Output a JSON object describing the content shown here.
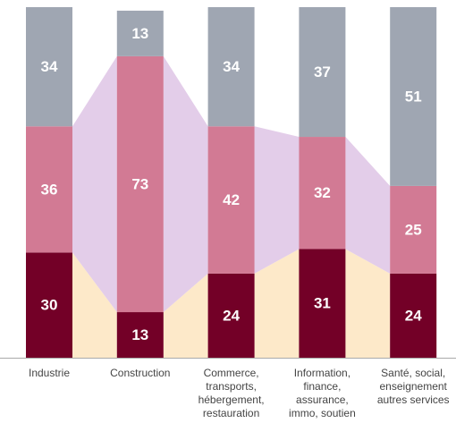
{
  "chart_data": {
    "type": "stacked_bar",
    "categories": [
      [
        "Industrie"
      ],
      [
        "Construction"
      ],
      [
        "Commerce,",
        "transports,",
        "hébergement,",
        "restauration"
      ],
      [
        "Information,",
        "finance,",
        "assurance,",
        "immo, soutien"
      ],
      [
        "Santé, social,",
        "enseignement",
        "autres services"
      ]
    ],
    "series": [
      {
        "color": "#730027",
        "area_color": "#fde9c9",
        "values": [
          30,
          13,
          24,
          31,
          24
        ]
      },
      {
        "color": "#d27a94",
        "area_color": "#e3cde9",
        "values": [
          36,
          73,
          42,
          32,
          25
        ]
      },
      {
        "color": "#9fa6b2",
        "values": [
          34,
          13,
          34,
          37,
          51
        ]
      }
    ],
    "ylim": [
      0,
      100
    ]
  }
}
